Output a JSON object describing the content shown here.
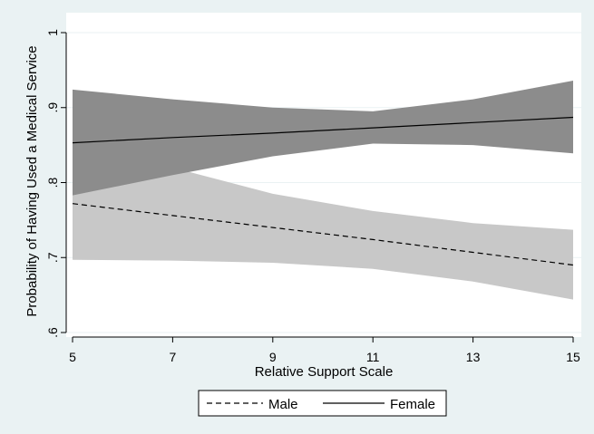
{
  "chart_data": {
    "type": "line",
    "title": "",
    "xlabel": "Relative Support Scale",
    "ylabel": "Probability of Having Used a Medical Service",
    "xlim": [
      5,
      15
    ],
    "ylim": [
      0.6,
      1.0
    ],
    "xticks": [
      5,
      7,
      9,
      11,
      13,
      15
    ],
    "xtick_labels": [
      "5",
      "7",
      "9",
      "11",
      "13",
      "15"
    ],
    "yticks": [
      0.6,
      0.7,
      0.8,
      0.9,
      1.0
    ],
    "ytick_labels": [
      ".6",
      ".7",
      ".8",
      ".9",
      "1"
    ],
    "grid": "horizontal",
    "legend_position": "bottom",
    "series": [
      {
        "name": "Male",
        "style": "dashed",
        "band_color": "#c8c8c8",
        "x": [
          5,
          7,
          9,
          11,
          13,
          15
        ],
        "values": [
          0.772,
          0.756,
          0.74,
          0.724,
          0.707,
          0.69
        ],
        "lower": [
          0.697,
          0.696,
          0.693,
          0.685,
          0.668,
          0.644
        ],
        "upper": [
          0.785,
          0.82,
          0.785,
          0.762,
          0.746,
          0.737
        ]
      },
      {
        "name": "Female",
        "style": "solid",
        "band_color": "#8c8c8c",
        "x": [
          5,
          7,
          9,
          11,
          13,
          15
        ],
        "values": [
          0.853,
          0.86,
          0.866,
          0.873,
          0.88,
          0.887
        ],
        "lower": [
          0.783,
          0.81,
          0.835,
          0.852,
          0.85,
          0.839
        ],
        "upper": [
          0.924,
          0.911,
          0.9,
          0.895,
          0.911,
          0.936
        ]
      }
    ]
  }
}
